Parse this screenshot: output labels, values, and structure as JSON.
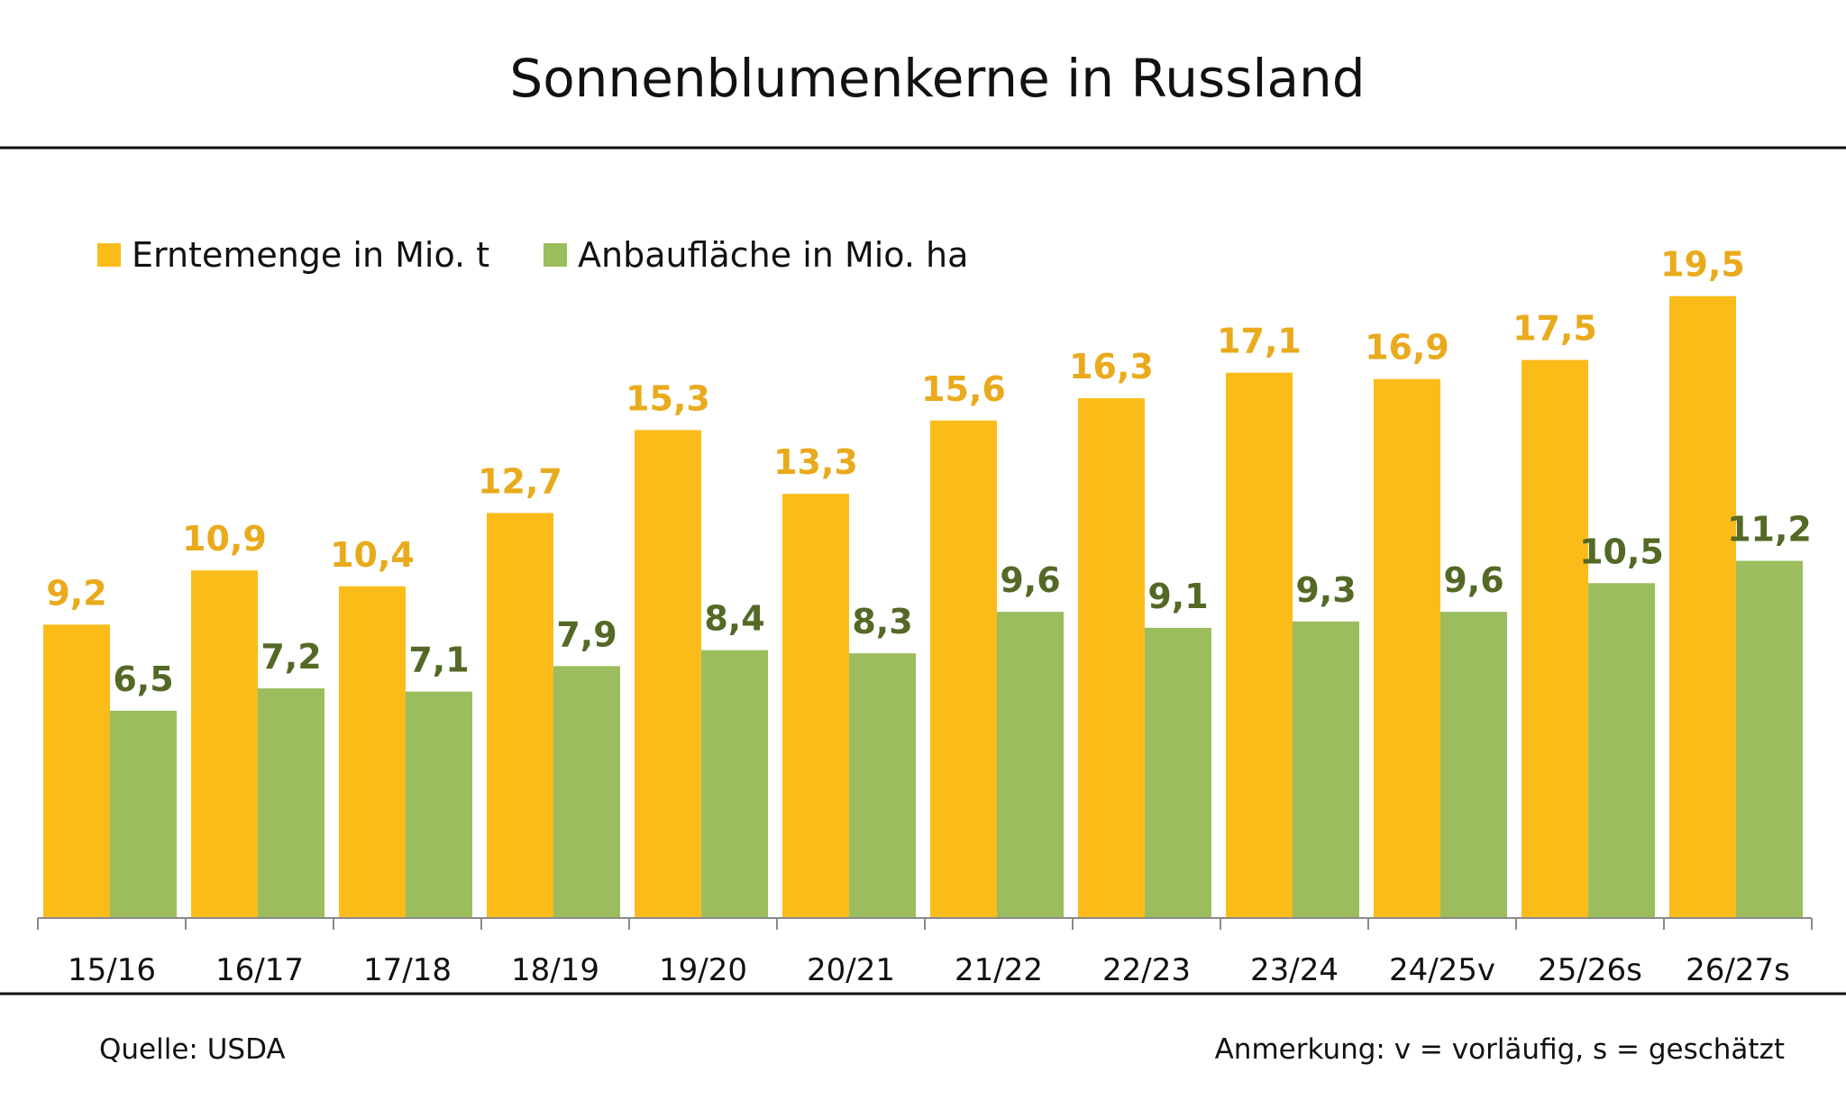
{
  "colors": {
    "series_1": "#FBBC1A",
    "series_1_label": "#E9AA1C",
    "series_2": "#9BBD5E",
    "series_2_label": "#536925",
    "text": "#111111",
    "axis": "#8a8a8a"
  },
  "footer": {
    "source": "Quelle: USDA",
    "note": "Anmerkung: v = vorläufig, s = geschätzt"
  },
  "chart_data": {
    "type": "bar",
    "title": "Sonnenblumenkerne in Russland",
    "subtitle": "",
    "xlabel": "",
    "ylabel": "",
    "ylim": [
      0,
      21
    ],
    "grid": false,
    "legend_position": "top-left",
    "categories": [
      "15/16",
      "16/17",
      "17/18",
      "18/19",
      "19/20",
      "20/21",
      "21/22",
      "22/23",
      "23/24",
      "24/25v",
      "25/26s",
      "26/27s"
    ],
    "series": [
      {
        "name": "Erntemenge in Mio. t",
        "values": [
          9.2,
          10.9,
          10.4,
          12.7,
          15.3,
          13.3,
          15.6,
          16.3,
          17.1,
          16.9,
          17.5,
          19.5
        ],
        "labels": [
          "9,2",
          "10,9",
          "10,4",
          "12,7",
          "15,3",
          "13,3",
          "15,6",
          "16,3",
          "17,1",
          "16,9",
          "17,5",
          "19,5"
        ]
      },
      {
        "name": "Anbaufläche in Mio. ha",
        "values": [
          6.5,
          7.2,
          7.1,
          7.9,
          8.4,
          8.3,
          9.6,
          9.1,
          9.3,
          9.6,
          10.5,
          11.2
        ],
        "labels": [
          "6,5",
          "7,2",
          "7,1",
          "7,9",
          "8,4",
          "8,3",
          "9,6",
          "9,1",
          "9,3",
          "9,6",
          "10,5",
          "11,2"
        ]
      }
    ]
  }
}
